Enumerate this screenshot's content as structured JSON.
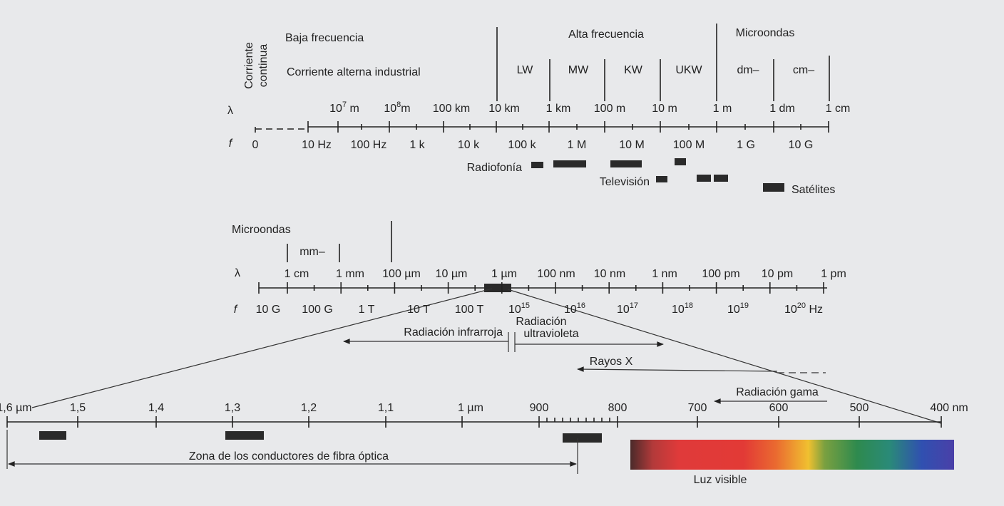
{
  "top": {
    "headings": {
      "low_frequency": "Baja frecuencia",
      "industrial_ac": "Corriente alterna industrial",
      "direct_current": [
        "Corriente",
        "continua"
      ],
      "high_frequency": "Alta frecuencia",
      "microwaves": "Microondas"
    },
    "bands": [
      "LW",
      "MW",
      "KW",
      "UKW",
      "dm–",
      "cm–"
    ],
    "lambda_symbol": "λ",
    "f_symbol": "f",
    "wavelengths": [
      {
        "base": "10",
        "exp": "7",
        "unit": " m"
      },
      {
        "base": "10",
        "exp": "8",
        "unit": "m"
      },
      "100 km",
      "10 km",
      "1 km",
      "100 m",
      "10 m",
      "1 m",
      "1 dm",
      "1 cm"
    ],
    "frequencies": [
      "0",
      "10 Hz",
      "100 Hz",
      "1 k",
      "10 k",
      "100 k",
      "1 M",
      "10 M",
      "100 M",
      "1 G",
      "10 G"
    ],
    "services": {
      "radio": "Radiofonía",
      "tv": "Televisión",
      "satellite": "Satélites"
    }
  },
  "middle": {
    "microwaves": "Microondas",
    "mm_band": "mm–",
    "lambda_symbol": "λ",
    "f_symbol": "f",
    "wavelengths": [
      "1 cm",
      "1 mm",
      "100 µm",
      "10 µm",
      "1 µm",
      "100 nm",
      "10 nm",
      "1 nm",
      "100 pm",
      "10 pm",
      "1 pm"
    ],
    "frequencies": [
      "10 G",
      "100 G",
      "1 T",
      "10 T",
      "100 T",
      {
        "base": "10",
        "exp": "15",
        "unit": ""
      },
      {
        "base": "10",
        "exp": "16",
        "unit": ""
      },
      {
        "base": "10",
        "exp": "17",
        "unit": ""
      },
      {
        "base": "10",
        "exp": "18",
        "unit": ""
      },
      {
        "base": "10",
        "exp": "19",
        "unit": ""
      },
      {
        "base": "10",
        "exp": "20",
        "unit": " Hz"
      }
    ],
    "infrared": "Radiación infrarroja",
    "ultraviolet": [
      "Radiación",
      "ultravioleta"
    ],
    "xrays": "Rayos X",
    "gamma": "Radiación gama"
  },
  "bottom": {
    "wavelengths": [
      "1,6 µm",
      "1,5",
      "1,4",
      "1,3",
      "1,2",
      "1,1",
      "1 µm",
      "900",
      "800",
      "700",
      "600",
      "500",
      "400 nm"
    ],
    "fiber_zone": "Zona de los conductores de fibra óptica",
    "visible_light": "Luz visible"
  }
}
